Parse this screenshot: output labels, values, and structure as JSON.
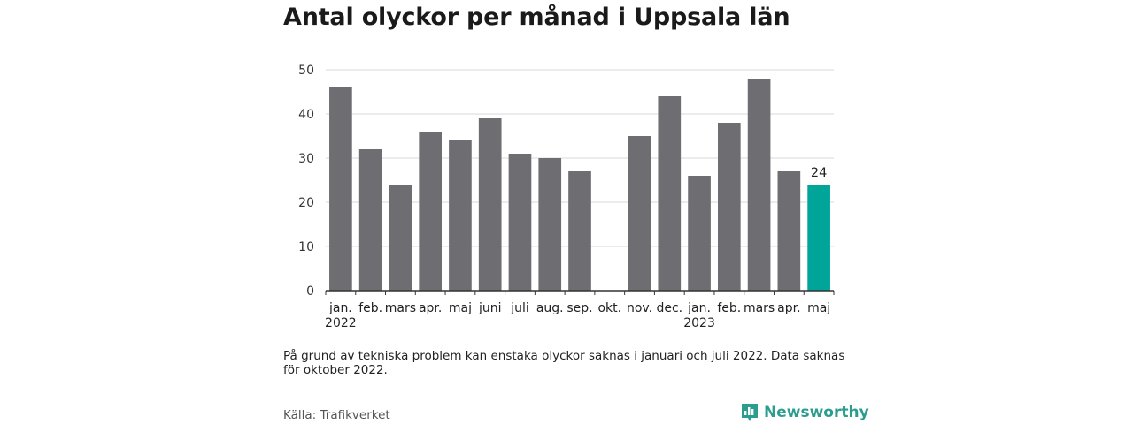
{
  "header": {
    "title": "Antal olyckor per månad i Uppsala län"
  },
  "chart_data": {
    "type": "bar",
    "title": "Antal olyckor per månad i Uppsala län",
    "xlabel": "",
    "ylabel": "",
    "ylim": [
      0,
      50
    ],
    "yticks": [
      0,
      10,
      20,
      30,
      40,
      50
    ],
    "grid": true,
    "categories": [
      "jan.",
      "feb.",
      "mars",
      "apr.",
      "maj",
      "juni",
      "juli",
      "aug.",
      "sep.",
      "okt.",
      "nov.",
      "dec.",
      "jan.",
      "feb.",
      "mars",
      "apr.",
      "maj"
    ],
    "year_labels": [
      {
        "index": 0,
        "label": "2022"
      },
      {
        "index": 12,
        "label": "2023"
      }
    ],
    "values": [
      46,
      32,
      24,
      36,
      34,
      39,
      31,
      30,
      27,
      null,
      35,
      44,
      26,
      38,
      48,
      27,
      24
    ],
    "highlight_index": 16,
    "highlight_label": "24",
    "colors": {
      "bar": "#6e6d72",
      "highlight": "#00a59a",
      "grid": "#d9d9d9",
      "axis": "#333333"
    }
  },
  "footer": {
    "note": "På grund av tekniska problem kan enstaka olyckor saknas i januari och juli 2022. Data saknas för oktober 2022.",
    "source": "Källa: Trafikverket",
    "brand": "Newsworthy",
    "brand_icon": "newsworthy-logo-icon",
    "brand_color": "#2a9d8f"
  }
}
